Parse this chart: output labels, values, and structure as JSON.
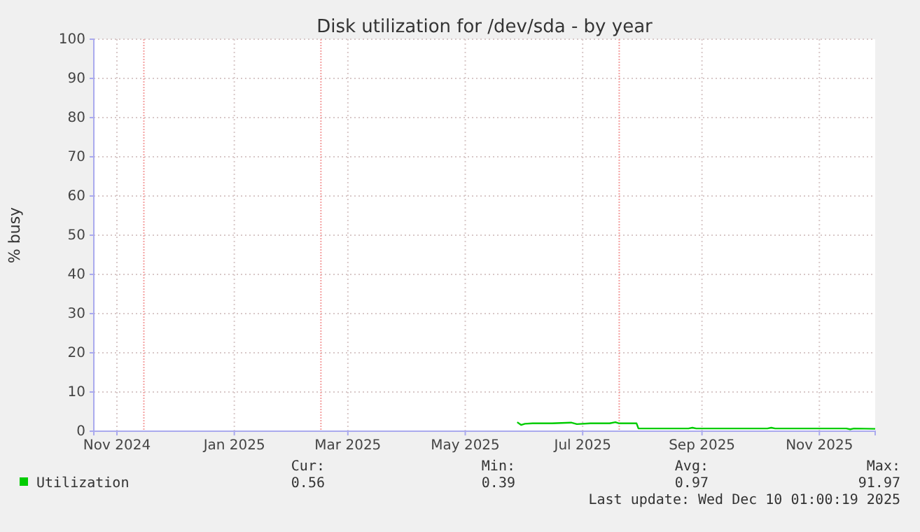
{
  "chart_data": {
    "type": "line",
    "title": "Disk utilization for /dev/sda - by year",
    "ylabel": "% busy",
    "xlim": [
      "2024-10-20",
      "2025-11-30"
    ],
    "ylim": [
      0,
      100
    ],
    "xticks": [
      {
        "value": "2024-11-01",
        "label": "Nov 2024"
      },
      {
        "value": "2025-01-01",
        "label": "Jan 2025"
      },
      {
        "value": "2025-03-01",
        "label": "Mar 2025"
      },
      {
        "value": "2025-05-01",
        "label": "May 2025"
      },
      {
        "value": "2025-07-01",
        "label": "Jul 2025"
      },
      {
        "value": "2025-09-01",
        "label": "Sep 2025"
      },
      {
        "value": "2025-11-01",
        "label": "Nov 2025"
      }
    ],
    "yticks": [
      0,
      10,
      20,
      30,
      40,
      50,
      60,
      70,
      80,
      90,
      100
    ],
    "grid": true,
    "legend": "bottom left",
    "ref_lines": [
      {
        "axis": "x",
        "value": "2024-11-15",
        "label": null,
        "color": "#f4a0a0"
      },
      {
        "axis": "x",
        "value": "2025-02-15",
        "label": null,
        "color": "#f4a0a0"
      },
      {
        "axis": "x",
        "value": "2025-07-20",
        "label": null,
        "color": "#f4a0a0"
      }
    ],
    "series": [
      {
        "name": "Utilization",
        "color": "#00cc00",
        "x": [
          "2025-05-28",
          "2025-05-30",
          "2025-06-01",
          "2025-06-05",
          "2025-06-15",
          "2025-06-25",
          "2025-06-28",
          "2025-07-05",
          "2025-07-15",
          "2025-07-18",
          "2025-07-20",
          "2025-07-29",
          "2025-07-30",
          "2025-08-25",
          "2025-08-27",
          "2025-08-29",
          "2025-10-05",
          "2025-10-07",
          "2025-10-09",
          "2025-11-15",
          "2025-11-17",
          "2025-11-19",
          "2025-11-30"
        ],
        "values": [
          2.3,
          1.6,
          1.9,
          2.0,
          2.0,
          2.2,
          1.8,
          2.0,
          2.0,
          2.3,
          2.0,
          2.0,
          0.7,
          0.7,
          0.9,
          0.7,
          0.7,
          0.9,
          0.7,
          0.7,
          0.5,
          0.7,
          0.6
        ]
      }
    ],
    "annotations": [
      "Cur:",
      "0.56",
      "Min:",
      "0.39",
      "Avg:",
      "0.97",
      "Max:",
      "91.97",
      "Last update: Wed Dec 10 01:00:19 2025"
    ]
  }
}
